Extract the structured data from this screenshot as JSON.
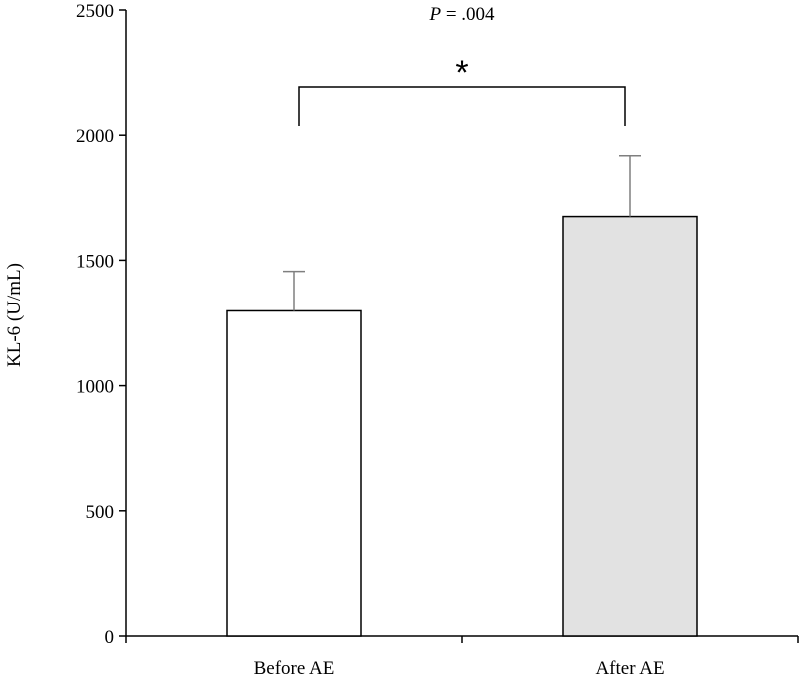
{
  "chart_data": {
    "type": "bar",
    "categories": [
      "Before AE",
      "After AE"
    ],
    "values": [
      1300,
      1675
    ],
    "error_upper": [
      1455,
      1918
    ],
    "ylabel": "KL-6 (U/mL)",
    "xlabel": "",
    "ylim": [
      0,
      2500
    ],
    "yticks": [
      0,
      500,
      1000,
      1500,
      2000,
      2500
    ],
    "bar_colors": [
      "#ffffff",
      "#e2e2e2"
    ],
    "grid": false,
    "annotation": {
      "p_prefix": "P",
      "p_rest": " = .004",
      "significance_marker": "*"
    }
  }
}
